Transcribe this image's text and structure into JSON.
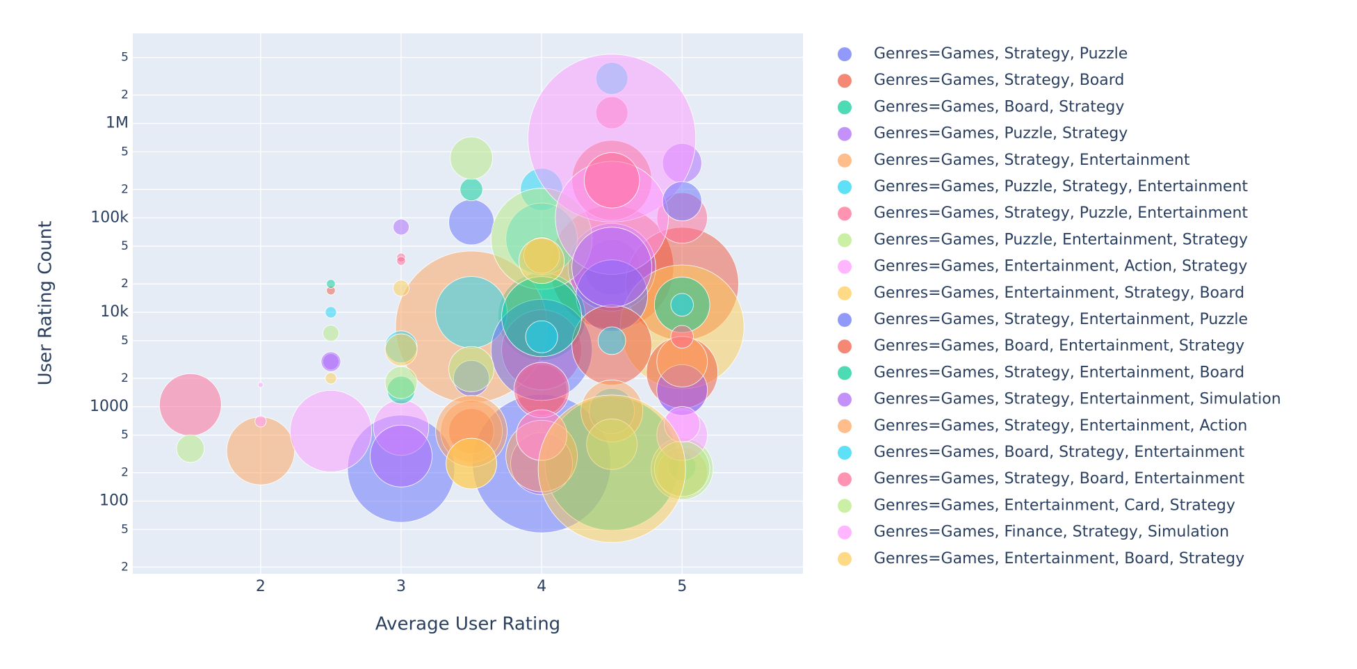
{
  "chart_data": {
    "type": "scatter",
    "x_label": "Average User Rating",
    "y_label": "User Rating Count",
    "xlim": [
      1.09,
      5.86
    ],
    "xticks": [
      2,
      3,
      4,
      5
    ],
    "ylim": [
      17,
      9000000
    ],
    "log_y": true,
    "grid": true,
    "legend": "right",
    "yticks": [
      {
        "value": 20,
        "label": "2"
      },
      {
        "value": 50,
        "label": "5"
      },
      100,
      {
        "value": 200,
        "label": "2"
      },
      {
        "value": 500,
        "label": "5"
      },
      1000,
      {
        "value": 2000,
        "label": "2"
      },
      {
        "value": 5000,
        "label": "5"
      },
      {
        "value": 10000,
        "label": "10k"
      },
      {
        "value": 20000,
        "label": "2"
      },
      {
        "value": 50000,
        "label": "5"
      },
      {
        "value": 100000,
        "label": "100k"
      },
      {
        "value": 200000,
        "label": "2"
      },
      {
        "value": 500000,
        "label": "5"
      },
      {
        "value": 1000000,
        "label": "1M"
      },
      {
        "value": 2000000,
        "label": "2"
      },
      {
        "value": 5000000,
        "label": "5"
      }
    ],
    "series": [
      {
        "name": "Genres=Games, Strategy, Puzzle",
        "color": "#636efa",
        "x": [
          3,
          4,
          3.5,
          5,
          4.5
        ],
        "values": [
          220,
          250,
          90000,
          1500,
          30000
        ],
        "sizes": [
          45,
          75,
          8,
          10,
          12
        ]
      },
      {
        "name": "Genres=Games, Strategy, Board",
        "color": "#EF553B",
        "x": [
          4.5,
          5,
          4.5,
          4,
          3.5
        ],
        "values": [
          30000,
          20000,
          250000,
          1500,
          550
        ],
        "sizes": [
          60,
          50,
          25,
          10,
          8
        ]
      },
      {
        "name": "Genres=Games, Board, Strategy",
        "color": "#00cc96",
        "x": [
          4.5,
          4,
          3.5,
          5
        ],
        "values": [
          250,
          9000,
          200000,
          230
        ],
        "sizes": [
          70,
          30,
          2,
          3
        ]
      },
      {
        "name": "Genres=Games, Puzzle, Strategy",
        "color": "#ab63fa",
        "x": [
          5,
          4.5,
          3,
          2.5,
          4
        ],
        "values": [
          380000,
          30000,
          80000,
          3000,
          250
        ],
        "sizes": [
          6,
          30,
          1,
          1,
          15
        ]
      },
      {
        "name": "Genres=Games, Strategy, Entertainment",
        "color": "#FFA15A",
        "x": [
          3.5,
          2,
          5,
          4,
          3.5
        ],
        "values": [
          7000,
          340,
          200,
          40000,
          550
        ],
        "sizes": [
          90,
          18,
          10,
          6,
          15
        ]
      },
      {
        "name": "Genres=Games, Puzzle, Strategy, Entertainment",
        "color": "#19d3f3",
        "x": [
          4.5,
          4,
          3.5,
          2.5,
          4.5,
          4
        ],
        "values": [
          3000000,
          200000,
          10000,
          10000,
          900,
          60000
        ],
        "sizes": [
          4,
          7,
          20,
          0.5,
          8,
          20
        ]
      },
      {
        "name": "Genres=Games, Strategy, Puzzle, Entertainment",
        "color": "#FF6692",
        "x": [
          1.5,
          4.5,
          4,
          5,
          3
        ],
        "values": [
          1050,
          1300000,
          4000,
          100000,
          38000
        ],
        "sizes": [
          15,
          4,
          25,
          10,
          0.3
        ]
      },
      {
        "name": "Genres=Games, Puzzle, Entertainment, Strategy",
        "color": "#B6E880",
        "x": [
          3.5,
          4,
          1.5,
          2.5,
          5
        ],
        "values": [
          430000,
          60000,
          360,
          6000,
          220
        ],
        "sizes": [
          7,
          40,
          3,
          1,
          15
        ]
      },
      {
        "name": "Genres=Games, Entertainment, Action, Strategy",
        "color": "#FF97FF",
        "x": [
          4.5,
          2.5,
          3,
          4.5,
          5
        ],
        "values": [
          700000,
          550,
          600,
          100000,
          500
        ],
        "sizes": [
          110,
          26,
          12,
          50,
          10
        ]
      },
      {
        "name": "Genres=Games, Entertainment, Strategy, Board",
        "color": "#FECB52",
        "x": [
          5,
          3.5,
          3,
          4
        ],
        "values": [
          7000,
          250,
          18000,
          40000
        ],
        "sizes": [
          60,
          10,
          1,
          5
        ]
      },
      {
        "name": "Genres=Games, Strategy, Entertainment, Puzzle",
        "color": "#636efa",
        "x": [
          4,
          5,
          3.5,
          4.5
        ],
        "values": [
          4000,
          150000,
          2000,
          15000
        ],
        "sizes": [
          40,
          6,
          5,
          20
        ]
      },
      {
        "name": "Genres=Games, Board, Entertainment, Strategy",
        "color": "#EF553B",
        "x": [
          5,
          4.5,
          2.5,
          4
        ],
        "values": [
          2300,
          4500,
          17000,
          500
        ],
        "sizes": [
          20,
          25,
          0.3,
          10
        ]
      },
      {
        "name": "Genres=Games, Strategy, Entertainment, Board",
        "color": "#00cc96",
        "x": [
          4,
          3,
          2.5,
          5
        ],
        "values": [
          9000,
          1500,
          20000,
          12000
        ],
        "sizes": [
          25,
          3,
          0.3,
          12
        ]
      },
      {
        "name": "Genres=Games, Strategy, Entertainment, Simulation",
        "color": "#ab63fa",
        "x": [
          4.5,
          5,
          3,
          2.5
        ],
        "values": [
          30000,
          1500,
          300,
          3000
        ],
        "sizes": [
          25,
          10,
          15,
          1.5
        ]
      },
      {
        "name": "Genres=Games, Strategy, Entertainment, Action",
        "color": "#FFA15A",
        "x": [
          3.5,
          4.5,
          4,
          5
        ],
        "values": [
          550,
          900,
          300,
          3000
        ],
        "sizes": [
          20,
          15,
          20,
          10
        ]
      },
      {
        "name": "Genres=Games, Board, Strategy, Entertainment",
        "color": "#19d3f3",
        "x": [
          4,
          3,
          5,
          4.5
        ],
        "values": [
          5500,
          4300,
          12000,
          5000
        ],
        "sizes": [
          4,
          4,
          2,
          3
        ]
      },
      {
        "name": "Genres=Games, Strategy, Board, Entertainment",
        "color": "#FF6692",
        "x": [
          4,
          4.5,
          5,
          3
        ],
        "values": [
          1500,
          250000,
          5500,
          35000
        ],
        "sizes": [
          12,
          12,
          2,
          0.3
        ]
      },
      {
        "name": "Genres=Games, Entertainment, Card, Strategy",
        "color": "#B6E880",
        "x": [
          5,
          3,
          3.5,
          4.5
        ],
        "values": [
          220,
          1800,
          2500,
          400
        ],
        "sizes": [
          12,
          4,
          8,
          10
        ]
      },
      {
        "name": "Genres=Games, Finance, Strategy, Simulation",
        "color": "#FF97FF",
        "x": [
          2,
          2,
          4,
          5
        ],
        "values": [
          700,
          1700,
          500,
          650
        ],
        "sizes": [
          0.5,
          0.1,
          10,
          5
        ]
      },
      {
        "name": "Genres=Games, Entertainment, Board, Strategy",
        "color": "#FECB52",
        "x": [
          4.5,
          3,
          3.5,
          2.5,
          4
        ],
        "values": [
          220,
          4000,
          250,
          2000,
          35000
        ],
        "sizes": [
          85,
          4,
          10,
          0.5,
          8
        ]
      }
    ]
  }
}
